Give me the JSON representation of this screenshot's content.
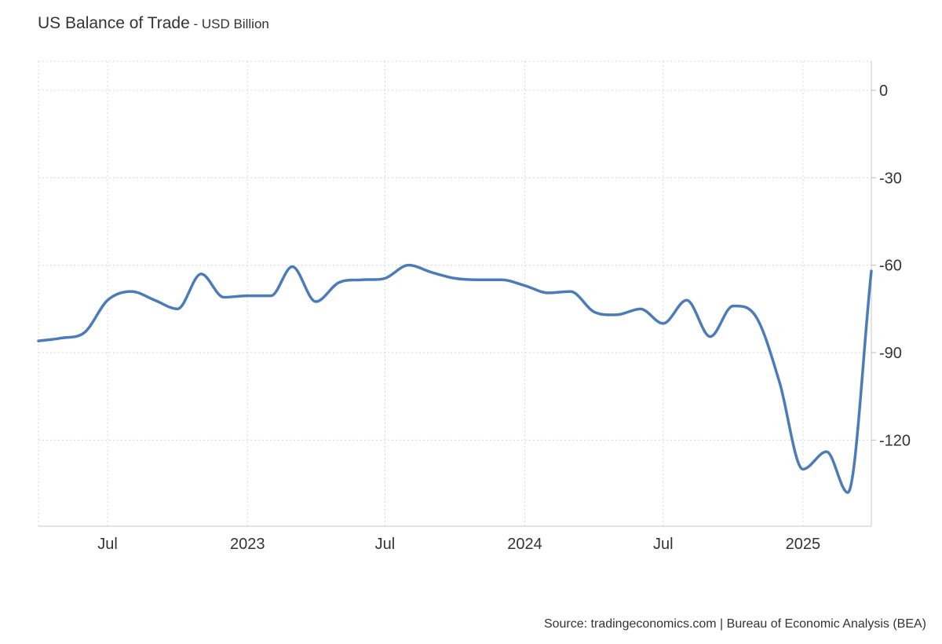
{
  "header": {
    "title": "US Balance of Trade",
    "subtitle": " - USD Billion"
  },
  "footer": {
    "source": "Source: tradingeconomics.com | Bureau of Economic Analysis (BEA)"
  },
  "chart_data": {
    "type": "line",
    "title": "US Balance of Trade",
    "subtitle": "USD Billion",
    "xlabel": "",
    "ylabel": "",
    "y_axis_side": "right",
    "ylim": [
      -150,
      10
    ],
    "xlim": [
      "2022-04-01",
      "2025-04-01"
    ],
    "grid": true,
    "legend": "none",
    "line_color": "#4c7cb8",
    "y_ticks": [
      0,
      -30,
      -60,
      -90,
      -120
    ],
    "x_ticks": [
      {
        "date": "2022-07-01",
        "label": "Jul"
      },
      {
        "date": "2023-01-01",
        "label": "2023"
      },
      {
        "date": "2023-07-01",
        "label": "Jul"
      },
      {
        "date": "2024-01-01",
        "label": "2024"
      },
      {
        "date": "2024-07-01",
        "label": "Jul"
      },
      {
        "date": "2025-01-01",
        "label": "2025"
      }
    ],
    "series": [
      {
        "name": "",
        "x": [
          "2022-04-01",
          "2022-05-01",
          "2022-06-01",
          "2022-07-01",
          "2022-08-01",
          "2022-09-01",
          "2022-10-01",
          "2022-11-01",
          "2022-12-01",
          "2023-01-01",
          "2023-02-01",
          "2023-03-01",
          "2023-04-01",
          "2023-05-01",
          "2023-06-01",
          "2023-07-01",
          "2023-08-01",
          "2023-09-01",
          "2023-10-01",
          "2023-11-01",
          "2023-12-01",
          "2024-01-01",
          "2024-02-01",
          "2024-03-01",
          "2024-04-01",
          "2024-05-01",
          "2024-06-01",
          "2024-07-01",
          "2024-08-01",
          "2024-09-01",
          "2024-10-01",
          "2024-11-01",
          "2024-12-01",
          "2025-01-01",
          "2025-02-01",
          "2025-03-01",
          "2025-04-01"
        ],
        "values": [
          -86,
          -85,
          -83,
          -72,
          -69,
          -72,
          -75,
          -63,
          -71,
          -70.5,
          -70.5,
          -60.5,
          -72.5,
          -66,
          -65,
          -64.5,
          -60,
          -62.5,
          -64.5,
          -65,
          -65,
          -67,
          -69.5,
          -69,
          -76,
          -77,
          -75,
          -80,
          -72,
          -84.5,
          -74,
          -78,
          -100,
          -130,
          -124,
          -138,
          -62
        ]
      }
    ]
  }
}
